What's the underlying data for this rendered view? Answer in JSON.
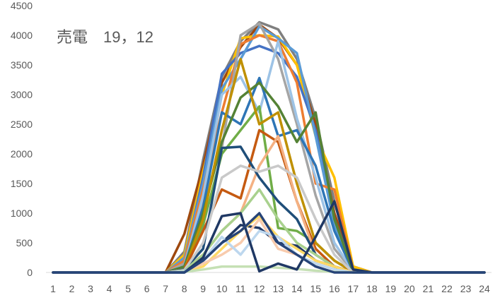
{
  "chart_data": {
    "type": "line",
    "title": "売電　19，12",
    "xlabel": "",
    "ylabel": "",
    "x": [
      1,
      2,
      3,
      4,
      5,
      6,
      7,
      8,
      9,
      10,
      11,
      12,
      13,
      14,
      15,
      16,
      17,
      18,
      19,
      20,
      21,
      22,
      23,
      24
    ],
    "ylim": [
      0,
      4500
    ],
    "yticks": [
      0,
      500,
      1000,
      1500,
      2000,
      2500,
      3000,
      3500,
      4000,
      4500
    ],
    "grid": false,
    "legend": "none",
    "series": [
      {
        "color": "#7f7f7f",
        "values": [
          0,
          0,
          0,
          0,
          0,
          0,
          0,
          350,
          1900,
          3300,
          3900,
          4220,
          4100,
          3600,
          2600,
          1200,
          100,
          0,
          0,
          0,
          0,
          0,
          0,
          0
        ]
      },
      {
        "color": "#9e480e",
        "values": [
          0,
          0,
          0,
          0,
          0,
          0,
          0,
          650,
          1800,
          3200,
          3800,
          4180,
          3950,
          3500,
          2500,
          1000,
          100,
          0,
          0,
          0,
          0,
          0,
          0,
          0
        ]
      },
      {
        "color": "#ffc000",
        "values": [
          0,
          0,
          0,
          0,
          0,
          0,
          0,
          300,
          1700,
          3000,
          3950,
          4000,
          3980,
          3500,
          2300,
          1600,
          100,
          0,
          0,
          0,
          0,
          0,
          0,
          0
        ]
      },
      {
        "color": "#4472c4",
        "values": [
          0,
          0,
          0,
          0,
          0,
          0,
          0,
          200,
          1600,
          3350,
          3700,
          3820,
          3700,
          3300,
          2400,
          900,
          50,
          0,
          0,
          0,
          0,
          0,
          0,
          0
        ]
      },
      {
        "color": "#5b9bd5",
        "values": [
          0,
          0,
          0,
          0,
          0,
          0,
          0,
          250,
          1500,
          3100,
          3600,
          4150,
          3950,
          3700,
          2300,
          800,
          50,
          0,
          0,
          0,
          0,
          0,
          0,
          0
        ]
      },
      {
        "color": "#ed7d31",
        "values": [
          0,
          0,
          0,
          0,
          0,
          0,
          0,
          200,
          1400,
          2700,
          3850,
          4000,
          3900,
          3200,
          1500,
          1400,
          50,
          0,
          0,
          0,
          0,
          0,
          0,
          0
        ]
      },
      {
        "color": "#a5a5a5",
        "values": [
          0,
          0,
          0,
          0,
          0,
          0,
          0,
          150,
          1200,
          2100,
          4000,
          4200,
          3600,
          2500,
          1300,
          400,
          20,
          0,
          0,
          0,
          0,
          0,
          0,
          0
        ]
      },
      {
        "color": "#9dc3e6",
        "values": [
          0,
          0,
          0,
          0,
          0,
          0,
          0,
          100,
          1300,
          3000,
          3300,
          2700,
          3900,
          2600,
          1600,
          500,
          20,
          0,
          0,
          0,
          0,
          0,
          0,
          0
        ]
      },
      {
        "color": "#2e75b6",
        "values": [
          0,
          0,
          0,
          0,
          0,
          0,
          0,
          100,
          1100,
          2700,
          2500,
          3280,
          2300,
          2400,
          1800,
          700,
          20,
          0,
          0,
          0,
          0,
          0,
          0,
          0
        ]
      },
      {
        "color": "#548235",
        "values": [
          0,
          0,
          0,
          0,
          0,
          0,
          0,
          100,
          1000,
          2200,
          2950,
          3200,
          2800,
          2200,
          2700,
          900,
          20,
          0,
          0,
          0,
          0,
          0,
          0,
          0
        ]
      },
      {
        "color": "#70ad47",
        "values": [
          0,
          0,
          0,
          0,
          0,
          0,
          0,
          50,
          800,
          2000,
          2400,
          2800,
          750,
          700,
          500,
          200,
          10,
          0,
          0,
          0,
          0,
          0,
          0,
          0
        ]
      },
      {
        "color": "#bf9000",
        "values": [
          0,
          0,
          0,
          0,
          0,
          0,
          0,
          50,
          900,
          2400,
          3600,
          2500,
          2700,
          1500,
          500,
          200,
          10,
          0,
          0,
          0,
          0,
          0,
          0,
          0
        ]
      },
      {
        "color": "#c55a11",
        "values": [
          0,
          0,
          0,
          0,
          0,
          0,
          0,
          50,
          700,
          1400,
          1250,
          2400,
          2200,
          1200,
          400,
          100,
          10,
          0,
          0,
          0,
          0,
          0,
          0,
          0
        ]
      },
      {
        "color": "#f4b183",
        "values": [
          0,
          0,
          0,
          0,
          0,
          0,
          0,
          50,
          300,
          700,
          1000,
          1800,
          2300,
          1200,
          300,
          100,
          0,
          0,
          0,
          0,
          0,
          0,
          0,
          0
        ]
      },
      {
        "color": "#1f4e79",
        "values": [
          0,
          0,
          0,
          0,
          0,
          0,
          0,
          50,
          400,
          2100,
          2120,
          1600,
          1200,
          900,
          300,
          100,
          0,
          0,
          0,
          0,
          0,
          0,
          0,
          0
        ]
      },
      {
        "color": "#c9c9c9",
        "values": [
          0,
          0,
          0,
          0,
          0,
          0,
          0,
          40,
          500,
          1600,
          1800,
          1700,
          1800,
          1600,
          900,
          300,
          0,
          0,
          0,
          0,
          0,
          0,
          0,
          0
        ]
      },
      {
        "color": "#a9d18e",
        "values": [
          0,
          0,
          0,
          0,
          0,
          0,
          0,
          30,
          300,
          700,
          1000,
          1400,
          900,
          500,
          300,
          100,
          0,
          0,
          0,
          0,
          0,
          0,
          0,
          0
        ]
      },
      {
        "color": "#203864",
        "values": [
          0,
          0,
          0,
          0,
          0,
          0,
          0,
          20,
          200,
          500,
          800,
          750,
          500,
          450,
          200,
          100,
          0,
          0,
          0,
          0,
          0,
          0,
          0,
          0
        ]
      },
      {
        "color": "#ffd966",
        "values": [
          0,
          0,
          0,
          0,
          0,
          0,
          0,
          20,
          100,
          400,
          700,
          950,
          600,
          400,
          200,
          100,
          0,
          0,
          0,
          0,
          0,
          0,
          0,
          0
        ]
      },
      {
        "color": "#f8cbad",
        "values": [
          0,
          0,
          0,
          0,
          0,
          0,
          0,
          20,
          150,
          300,
          500,
          900,
          400,
          300,
          150,
          50,
          0,
          0,
          0,
          0,
          0,
          0,
          0,
          0
        ]
      },
      {
        "color": "#bdd7ee",
        "values": [
          0,
          0,
          0,
          0,
          0,
          0,
          0,
          20,
          200,
          600,
          300,
          700,
          600,
          300,
          150,
          50,
          0,
          0,
          0,
          0,
          0,
          0,
          0,
          0
        ]
      },
      {
        "color": "#c5e0b4",
        "values": [
          0,
          0,
          0,
          0,
          0,
          0,
          0,
          10,
          50,
          100,
          100,
          100,
          80,
          60,
          30,
          10,
          0,
          0,
          0,
          0,
          0,
          0,
          0,
          0
        ]
      },
      {
        "color": "#1f3864",
        "values": [
          0,
          0,
          0,
          0,
          0,
          0,
          0,
          0,
          250,
          950,
          1000,
          20,
          150,
          50,
          600,
          1200,
          50,
          0,
          0,
          0,
          0,
          0,
          0,
          0
        ]
      },
      {
        "color": "#264478",
        "values": [
          0,
          0,
          0,
          0,
          0,
          0,
          0,
          0,
          200,
          500,
          700,
          1000,
          500,
          300,
          100,
          0,
          0,
          0,
          0,
          0,
          0,
          0,
          0,
          0
        ]
      }
    ]
  }
}
